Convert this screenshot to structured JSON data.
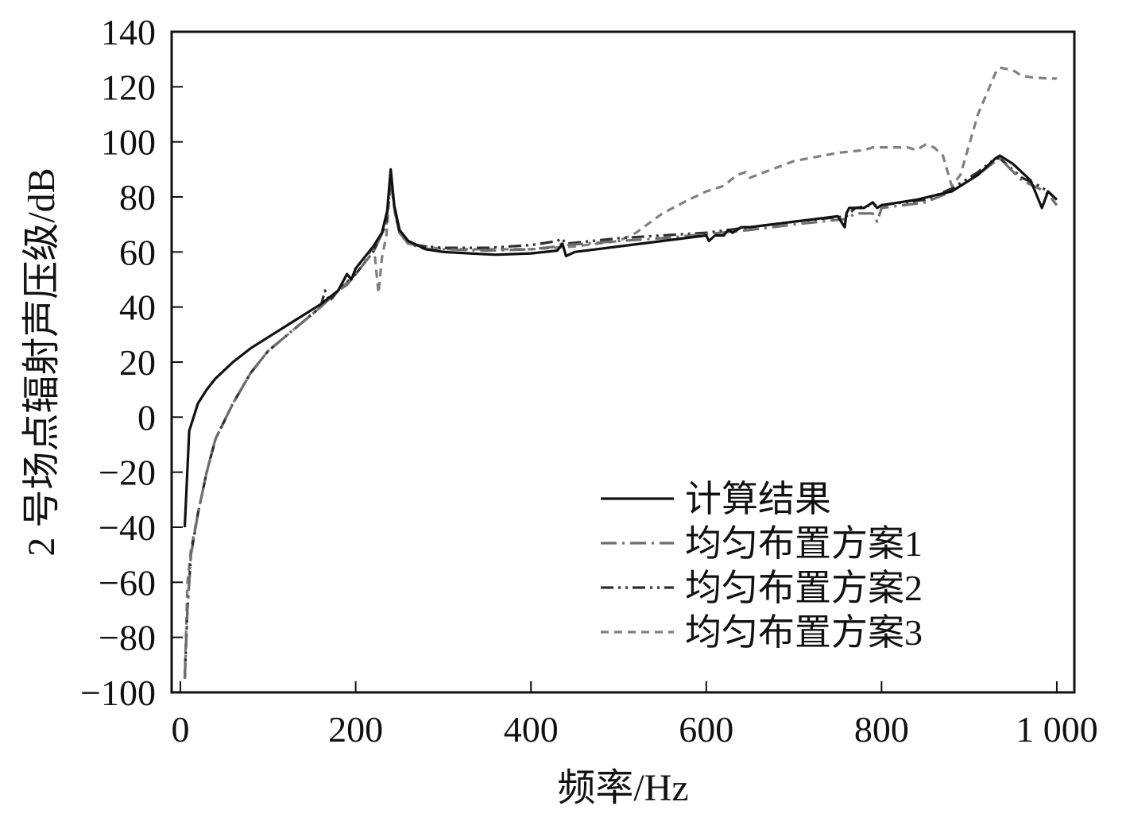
{
  "chart_data": {
    "type": "line",
    "xlabel": "频率/Hz",
    "ylabel": "2 号场点辐射声压级/dB",
    "xlim": [
      -10,
      1020
    ],
    "ylim": [
      -100,
      140
    ],
    "xticks": [
      0,
      200,
      400,
      600,
      800,
      1000
    ],
    "xtick_labels": [
      "0",
      "200",
      "400",
      "600",
      "800",
      "1 000"
    ],
    "yticks": [
      -100,
      -80,
      -60,
      -40,
      -20,
      0,
      20,
      40,
      60,
      80,
      100,
      120,
      140
    ],
    "ytick_labels": [
      "−100",
      "−80",
      "−60",
      "−40",
      "−20",
      "0",
      "20",
      "40",
      "60",
      "80",
      "100",
      "120",
      "140"
    ],
    "grid": false,
    "legend_position": "lower-right",
    "series": [
      {
        "name": "计算结果",
        "color": "#111111",
        "dash": "solid",
        "x": [
          5,
          10,
          20,
          30,
          40,
          60,
          80,
          100,
          130,
          160,
          180,
          190,
          195,
          200,
          210,
          220,
          230,
          236,
          240,
          244,
          250,
          260,
          280,
          300,
          330,
          360,
          400,
          430,
          436,
          440,
          450,
          500,
          550,
          600,
          603,
          610,
          620,
          625,
          630,
          640,
          650,
          700,
          750,
          758,
          760,
          763,
          780,
          790,
          795,
          800,
          840,
          880,
          910,
          930,
          935,
          950,
          970,
          983,
          990,
          1000
        ],
        "y": [
          -40,
          -5,
          5,
          10,
          14,
          20,
          25,
          29,
          35,
          41,
          46,
          52,
          50,
          54,
          58,
          62,
          67,
          75,
          90,
          77,
          68,
          64,
          61,
          60,
          59.5,
          59,
          59.5,
          60.5,
          63,
          58.5,
          60,
          62,
          64,
          66,
          64,
          66,
          66,
          68,
          67,
          69,
          69,
          71,
          73,
          69,
          74,
          76,
          76,
          78,
          76,
          77,
          79,
          82,
          88,
          94,
          95,
          92,
          86,
          76,
          82,
          79
        ]
      },
      {
        "name": "均匀布置方案1",
        "color": "#6e6e6e",
        "dash": "dashdot",
        "x": [
          5,
          8,
          12,
          20,
          30,
          40,
          60,
          80,
          100,
          130,
          160,
          170,
          180,
          190,
          200,
          220,
          235,
          240,
          245,
          250,
          260,
          280,
          300,
          350,
          400,
          430,
          435,
          440,
          500,
          550,
          600,
          650,
          700,
          760,
          770,
          790,
          795,
          800,
          850,
          880,
          910,
          930,
          935,
          960,
          980,
          990,
          1000
        ],
        "y": [
          -95,
          -70,
          -50,
          -35,
          -20,
          -8,
          5,
          16,
          24,
          32,
          40,
          43,
          46,
          48,
          52,
          60,
          70,
          86,
          74,
          67,
          63,
          61,
          61,
          60.5,
          61,
          62,
          63,
          62.5,
          64,
          65,
          66.5,
          68,
          70,
          72,
          74,
          74,
          71,
          76,
          78,
          82,
          88,
          93,
          94,
          86,
          83,
          81,
          77
        ]
      },
      {
        "name": "均匀布置方案2",
        "color": "#2e2e2e",
        "dash": "dashdotdot",
        "x": [
          5,
          8,
          12,
          20,
          30,
          40,
          60,
          80,
          100,
          130,
          160,
          165,
          170,
          180,
          190,
          200,
          220,
          235,
          240,
          245,
          250,
          260,
          280,
          300,
          350,
          400,
          430,
          435,
          440,
          500,
          550,
          600,
          650,
          700,
          760,
          770,
          790,
          800,
          850,
          880,
          910,
          930,
          935,
          960,
          980,
          990,
          1000
        ],
        "y": [
          -95,
          -70,
          -50,
          -35,
          -20,
          -8,
          5,
          16,
          24,
          32,
          40,
          46,
          42,
          46,
          49,
          52,
          60,
          70,
          88,
          74,
          67,
          63,
          62,
          61.5,
          61.5,
          62.5,
          64,
          65,
          63,
          65,
          66,
          67,
          69,
          71,
          73,
          76,
          77,
          77,
          79,
          83,
          89,
          94,
          94,
          87,
          84,
          82,
          79
        ]
      },
      {
        "name": "均匀布置方案3",
        "color": "#808080",
        "dash": "dashed",
        "x": [
          5,
          8,
          12,
          20,
          30,
          40,
          60,
          80,
          100,
          130,
          160,
          180,
          200,
          210,
          218,
          222,
          226,
          230,
          235,
          240,
          245,
          250,
          260,
          280,
          300,
          350,
          400,
          450,
          500,
          520,
          550,
          580,
          600,
          620,
          635,
          645,
          650,
          700,
          750,
          780,
          790,
          800,
          830,
          840,
          850,
          860,
          870,
          880,
          890,
          910,
          930,
          935,
          950,
          960,
          970,
          990,
          1000
        ],
        "y": [
          -95,
          -60,
          -48,
          -35,
          -20,
          -8,
          5,
          16,
          24,
          32,
          40,
          46,
          52,
          56,
          61,
          58,
          45,
          58,
          66,
          86,
          74,
          67,
          63,
          62,
          61,
          61,
          61,
          62,
          64,
          67,
          74,
          79,
          82,
          84,
          88,
          89,
          87,
          93,
          96,
          97,
          98,
          98,
          98,
          97,
          99,
          98,
          95,
          84,
          88,
          110,
          125,
          127,
          126,
          124,
          123.5,
          123,
          123
        ]
      }
    ]
  }
}
